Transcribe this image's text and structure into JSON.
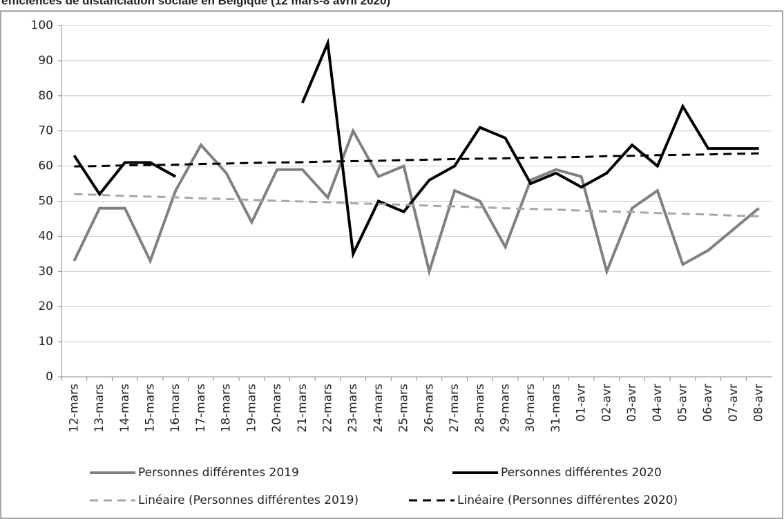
{
  "chart_data": {
    "type": "line",
    "title": "efficiences de distanciation sociale en Belgique (12 mars-8 avril 2020)",
    "categories": [
      "12-mars",
      "13-mars",
      "14-mars",
      "15-mars",
      "16-mars",
      "17-mars",
      "18-mars",
      "19-mars",
      "20-mars",
      "21-mars",
      "22-mars",
      "23-mars",
      "24-mars",
      "25-mars",
      "26-mars",
      "27-mars",
      "28-mars",
      "29-mars",
      "30-mars",
      "31-mars",
      "01-avr",
      "02-avr",
      "03-avr",
      "04-avr",
      "05-avr",
      "06-avr",
      "07-avr",
      "08-avr"
    ],
    "series": [
      {
        "name": "Personnes différentes 2019",
        "color": "#808080",
        "dashed": false,
        "values": [
          33,
          48,
          48,
          33,
          53,
          66,
          58,
          44,
          59,
          59,
          51,
          70,
          57,
          60,
          30,
          53,
          50,
          37,
          56,
          59,
          57,
          30,
          48,
          53,
          32,
          36,
          42,
          48
        ]
      },
      {
        "name": "Personnes différentes 2020",
        "color": "#000000",
        "dashed": false,
        "values": [
          63,
          52,
          61,
          61,
          57,
          null,
          null,
          null,
          null,
          78,
          95,
          35,
          50,
          47,
          56,
          60,
          71,
          68,
          55,
          58,
          54,
          58,
          66,
          60,
          77,
          65,
          65,
          65
        ]
      },
      {
        "name": "Linéaire (Personnes différentes 2019)",
        "color": "#a6a6a6",
        "dashed": true,
        "values": [
          52.0,
          51.8,
          51.5,
          51.3,
          51.1,
          50.8,
          50.6,
          50.4,
          50.1,
          49.9,
          49.7,
          49.4,
          49.2,
          49.0,
          48.7,
          48.5,
          48.3,
          48.0,
          47.8,
          47.6,
          47.3,
          47.1,
          46.9,
          46.6,
          46.4,
          46.2,
          45.9,
          45.7
        ]
      },
      {
        "name": "Linéaire (Personnes différentes 2020)",
        "color": "#000000",
        "dashed": true,
        "values": [
          59.9,
          60.0,
          60.2,
          60.3,
          60.4,
          60.6,
          60.7,
          60.9,
          61.0,
          61.1,
          61.3,
          61.4,
          61.5,
          61.7,
          61.8,
          62.0,
          62.1,
          62.2,
          62.4,
          62.5,
          62.6,
          62.8,
          62.9,
          63.1,
          63.2,
          63.3,
          63.5,
          63.6
        ]
      }
    ],
    "ylim": [
      0,
      100
    ],
    "yticks": [
      0,
      10,
      20,
      30,
      40,
      50,
      60,
      70,
      80,
      90,
      100
    ],
    "grid": true
  }
}
